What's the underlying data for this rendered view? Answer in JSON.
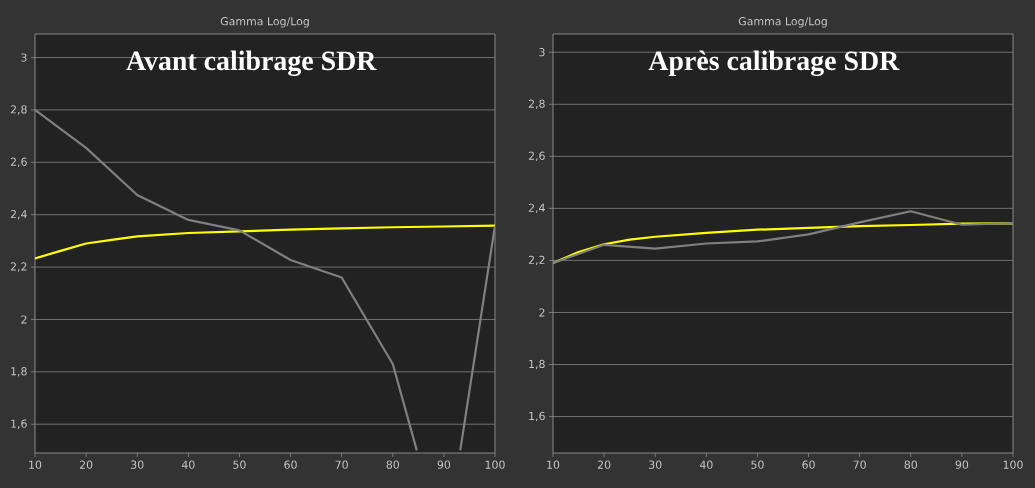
{
  "chart_data": [
    {
      "type": "line",
      "title": "Gamma Log/Log",
      "subtitle": "Avant calibrage SDR",
      "xlim": [
        10,
        100
      ],
      "xticks": [
        10,
        20,
        30,
        40,
        50,
        60,
        70,
        80,
        90,
        100
      ],
      "ylim": [
        1.49,
        3.09
      ],
      "yticks": [
        {
          "value": 1.6,
          "label": "1,6"
        },
        {
          "value": 1.8,
          "label": "1,8"
        },
        2,
        {
          "value": 2.2,
          "label": "2,2"
        },
        {
          "value": 2.4,
          "label": "2,4"
        },
        {
          "value": 2.6,
          "label": "2,6"
        },
        {
          "value": 2.8,
          "label": "2,8"
        },
        3
      ],
      "grid": "y",
      "marker": "none",
      "line_style": "solid",
      "series": [
        {
          "color": "#ffff00",
          "x": [
            10,
            15,
            20,
            25,
            30,
            40,
            50,
            60,
            70,
            80,
            90,
            100
          ],
          "values": [
            2.233,
            2.262,
            2.29,
            2.304,
            2.317,
            2.33,
            2.336,
            2.343,
            2.348,
            2.352,
            2.355,
            2.358
          ]
        },
        {
          "color": "#808080",
          "x": [
            10,
            20,
            30,
            40,
            50,
            60,
            70,
            80,
            84.7,
            90,
            93.2,
            100
          ],
          "values": [
            2.8,
            2.655,
            2.475,
            2.38,
            2.34,
            2.227,
            2.16,
            1.83,
            1.5,
            null,
            1.5,
            2.358
          ]
        }
      ]
    },
    {
      "type": "line",
      "title": "Gamma Log/Log",
      "subtitle": "Après calibrage SDR",
      "xlim": [
        10,
        100
      ],
      "xticks": [
        10,
        20,
        30,
        40,
        50,
        60,
        70,
        80,
        90,
        100
      ],
      "ylim": [
        1.46,
        3.07
      ],
      "yticks": [
        {
          "value": 1.6,
          "label": "1,6"
        },
        {
          "value": 1.8,
          "label": "1,8"
        },
        2,
        {
          "value": 2.2,
          "label": "2,2"
        },
        {
          "value": 2.4,
          "label": "2,4"
        },
        {
          "value": 2.6,
          "label": "2,6"
        },
        {
          "value": 2.8,
          "label": "2,8"
        },
        3
      ],
      "grid": "y",
      "marker": "none",
      "line_style": "solid",
      "series": [
        {
          "color": "#ffff00",
          "x": [
            10,
            15,
            20,
            25,
            30,
            40,
            50,
            60,
            70,
            80,
            90,
            100
          ],
          "values": [
            2.19,
            2.232,
            2.262,
            2.28,
            2.291,
            2.306,
            2.318,
            2.325,
            2.332,
            2.336,
            2.341,
            2.342
          ]
        },
        {
          "color": "#808080",
          "x": [
            10,
            20,
            30,
            40,
            50,
            60,
            70,
            80,
            90,
            100
          ],
          "values": [
            2.19,
            2.26,
            2.245,
            2.265,
            2.273,
            2.3,
            2.346,
            2.389,
            2.337,
            2.343
          ]
        }
      ]
    }
  ]
}
